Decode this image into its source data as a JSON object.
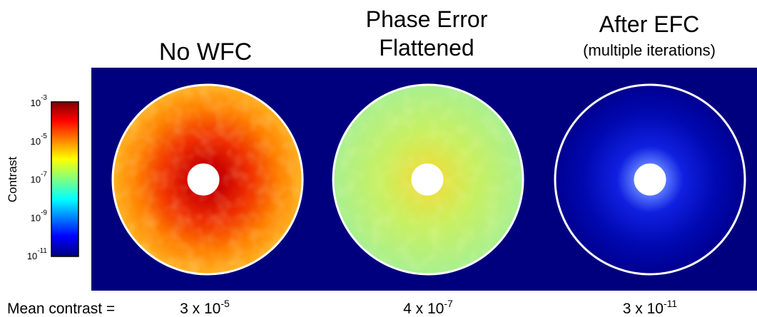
{
  "panels": [
    {
      "title_lines": [
        "No WFC"
      ]
    },
    {
      "title_lines": [
        "Phase Error",
        "Flattened"
      ]
    },
    {
      "title_lines": [
        "After EFC"
      ],
      "subtitle": "(multiple iterations)"
    }
  ],
  "colorbar": {
    "label": "Contrast",
    "ticks": [
      {
        "base": "10",
        "exp": "-3"
      },
      {
        "base": "10",
        "exp": "-5"
      },
      {
        "base": "10",
        "exp": "-7"
      },
      {
        "base": "10",
        "exp": "-9"
      },
      {
        "base": "10",
        "exp": "-11"
      }
    ]
  },
  "mean_contrast": {
    "label": "Mean contrast =",
    "values": [
      {
        "mantissa": "3 x 10",
        "exp": "-5"
      },
      {
        "mantissa": "4 x 10",
        "exp": "-7"
      },
      {
        "mantissa": "3 x 10",
        "exp": "-11"
      }
    ]
  }
}
